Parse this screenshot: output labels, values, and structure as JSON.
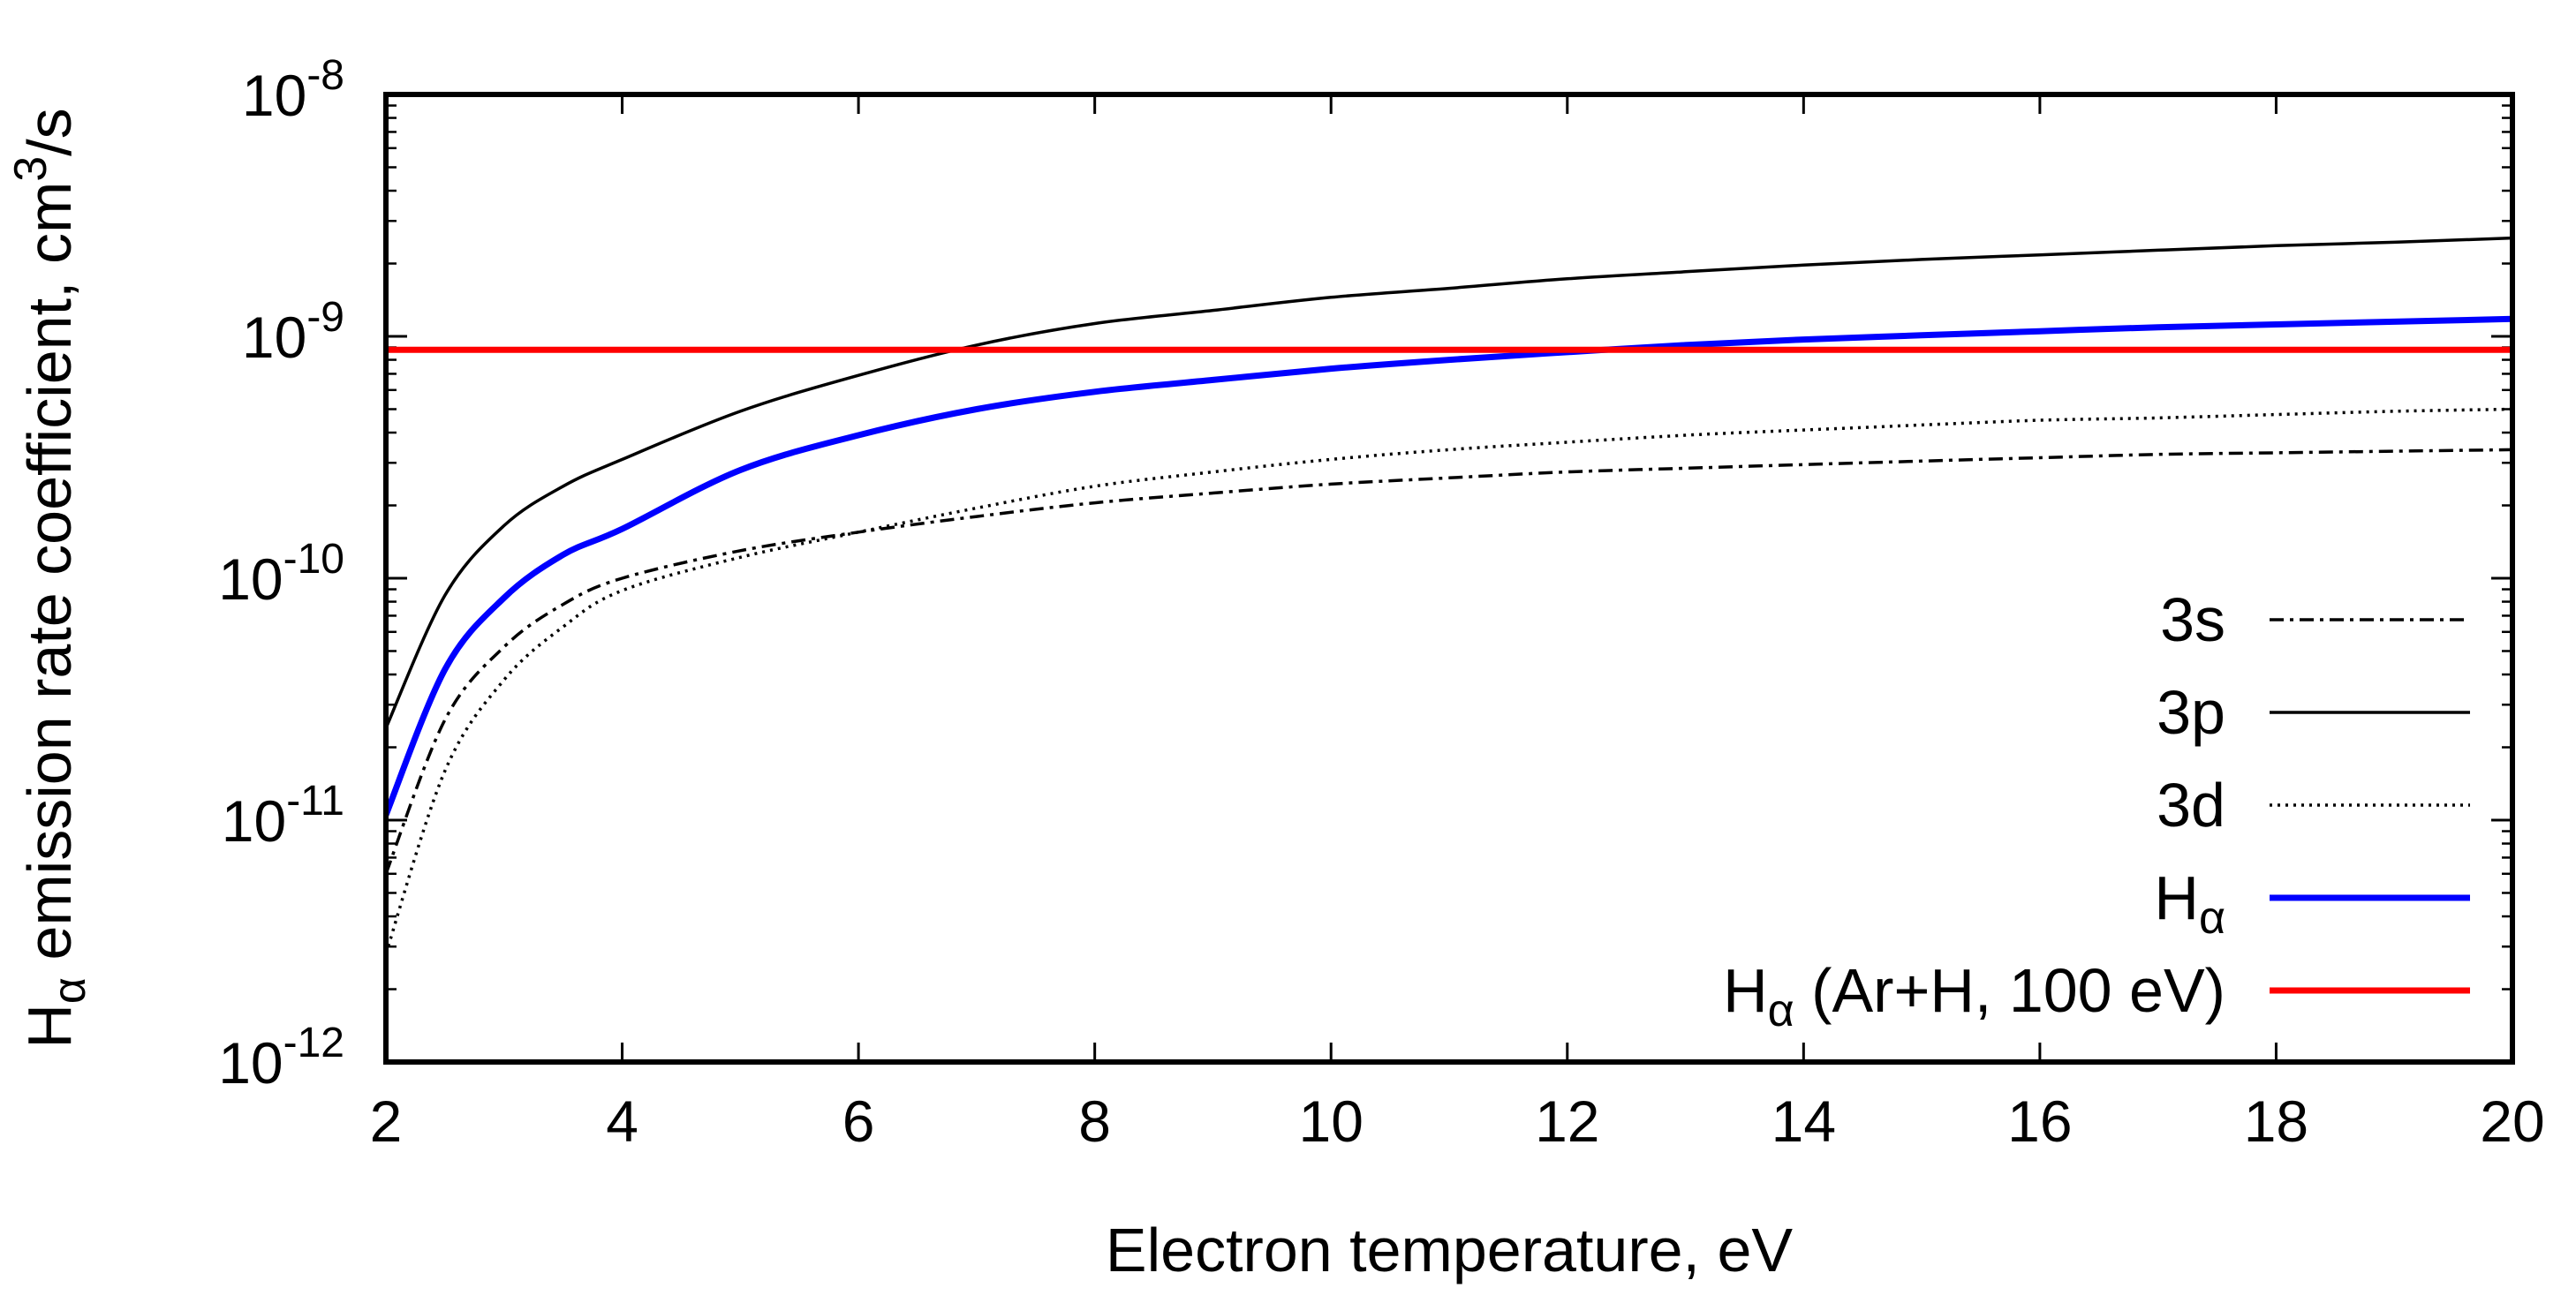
{
  "chart_data": {
    "type": "line",
    "title": "",
    "xlabel": "Electron temperature, eV",
    "ylabel": {
      "prefix": "H",
      "prefix_sub": "α",
      "text": " emission rate coefficient, cm",
      "sup": "3",
      "suffix": "/s"
    },
    "xlim": [
      2,
      20
    ],
    "ylim": [
      1e-12,
      1e-08
    ],
    "yscale": "log",
    "grid": false,
    "legend_position": "bottom-right",
    "x_ticks": [
      {
        "value": 2,
        "label": "2"
      },
      {
        "value": 4,
        "label": "4"
      },
      {
        "value": 6,
        "label": "6"
      },
      {
        "value": 8,
        "label": "8"
      },
      {
        "value": 10,
        "label": "10"
      },
      {
        "value": 12,
        "label": "12"
      },
      {
        "value": 14,
        "label": "14"
      },
      {
        "value": 16,
        "label": "16"
      },
      {
        "value": 18,
        "label": "18"
      },
      {
        "value": 20,
        "label": "20"
      }
    ],
    "y_ticks": [
      {
        "value": 1e-12,
        "base": "10",
        "exp": "-12"
      },
      {
        "value": 1e-11,
        "base": "10",
        "exp": "-11"
      },
      {
        "value": 1e-10,
        "base": "10",
        "exp": "-10"
      },
      {
        "value": 1e-09,
        "base": "10",
        "exp": "-9"
      },
      {
        "value": 1e-08,
        "base": "10",
        "exp": "-8"
      }
    ],
    "x": [
      2,
      2.5,
      3,
      3.5,
      4,
      5,
      6,
      7,
      8,
      9,
      10,
      11,
      12,
      13,
      14,
      15,
      16,
      17,
      18,
      19,
      20
    ],
    "series": [
      {
        "name": "3s",
        "label": "3s",
        "label_sub": "",
        "label_rest": "",
        "color": "#000000",
        "style": "dashdot",
        "width": "thin",
        "values": [
          6e-12,
          2.6e-11,
          5.2e-11,
          7.8e-11,
          1e-10,
          1.3e-10,
          1.55e-10,
          1.8e-10,
          2.05e-10,
          2.25e-10,
          2.45e-10,
          2.6e-10,
          2.75e-10,
          2.85e-10,
          2.95e-10,
          3.05e-10,
          3.15e-10,
          3.25e-10,
          3.3e-10,
          3.35e-10,
          3.4e-10
        ]
      },
      {
        "name": "3p",
        "label": "3p",
        "label_sub": "",
        "label_rest": "",
        "color": "#000000",
        "style": "solid",
        "width": "thin",
        "values": [
          2.4e-11,
          8.5e-11,
          1.65e-10,
          2.4e-10,
          3.1e-10,
          4.9e-10,
          6.9e-10,
          9.2e-10,
          1.13e-09,
          1.28e-09,
          1.45e-09,
          1.58e-09,
          1.73e-09,
          1.85e-09,
          1.97e-09,
          2.08e-09,
          2.17e-09,
          2.27e-09,
          2.37e-09,
          2.45e-09,
          2.55e-09
        ]
      },
      {
        "name": "3d",
        "label": "3d",
        "label_sub": "",
        "label_rest": "",
        "color": "#000000",
        "style": "dotted",
        "width": "thin",
        "values": [
          2.8e-12,
          1.6e-11,
          3.8e-11,
          6.3e-11,
          8.9e-11,
          1.22e-10,
          1.55e-10,
          1.95e-10,
          2.4e-10,
          2.75e-10,
          3.1e-10,
          3.4e-10,
          3.65e-10,
          3.9e-10,
          4.1e-10,
          4.3e-10,
          4.5e-10,
          4.6e-10,
          4.75e-10,
          4.9e-10,
          5e-10
        ]
      },
      {
        "name": "Hα",
        "label": "H",
        "label_sub": "α",
        "label_rest": "",
        "color": "#0000ff",
        "style": "solid",
        "width": "thick",
        "values": [
          1.05e-11,
          4.2e-11,
          8.3e-11,
          1.25e-10,
          1.6e-10,
          2.8e-10,
          3.9e-10,
          5e-10,
          5.9e-10,
          6.6e-10,
          7.35e-10,
          8e-10,
          8.6e-10,
          9.2e-10,
          9.7e-10,
          1.01e-09,
          1.05e-09,
          1.09e-09,
          1.12e-09,
          1.15e-09,
          1.18e-09
        ]
      },
      {
        "name": "Hα (Ar+H, 100 eV)",
        "label": "H",
        "label_sub": "α",
        "label_rest": " (Ar+H, 100 eV)",
        "color": "#ff0000",
        "style": "solid",
        "width": "thick",
        "values": [
          8.8e-10,
          8.8e-10,
          8.8e-10,
          8.8e-10,
          8.8e-10,
          8.8e-10,
          8.8e-10,
          8.8e-10,
          8.8e-10,
          8.8e-10,
          8.8e-10,
          8.8e-10,
          8.8e-10,
          8.8e-10,
          8.8e-10,
          8.8e-10,
          8.8e-10,
          8.8e-10,
          8.8e-10,
          8.8e-10,
          8.8e-10
        ]
      }
    ]
  }
}
